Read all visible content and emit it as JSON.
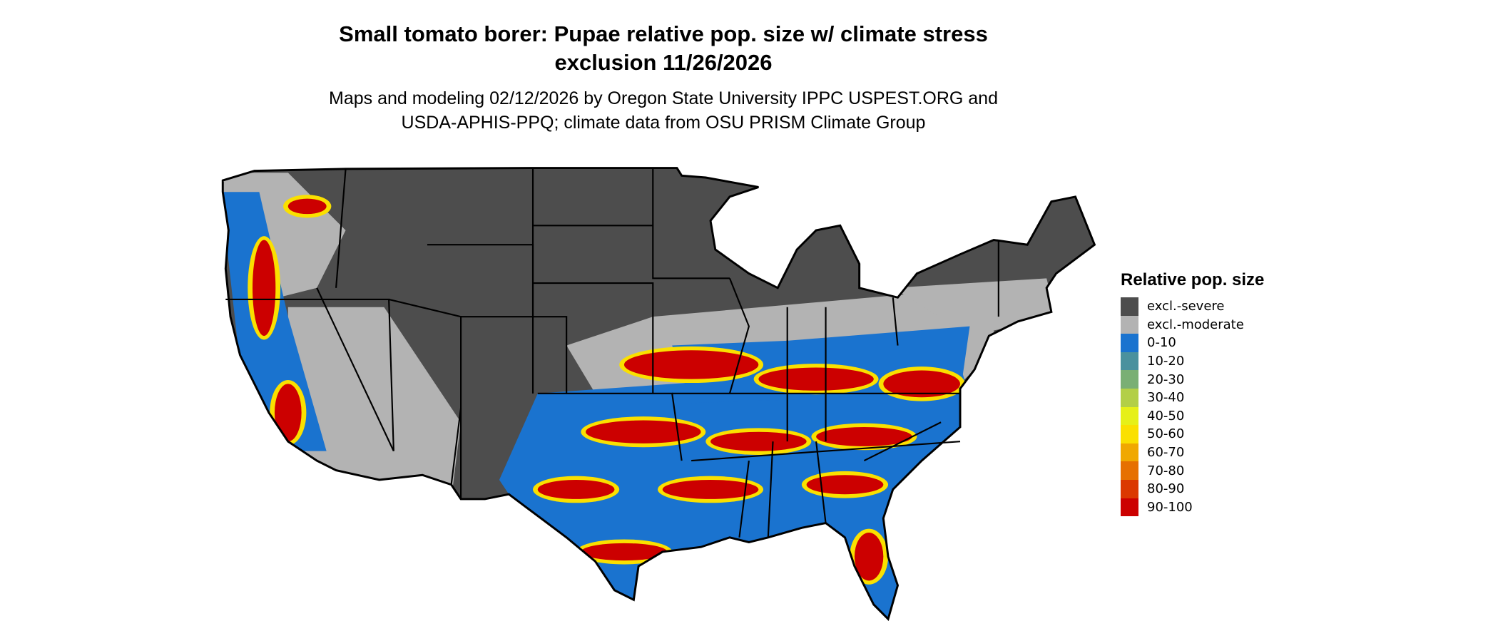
{
  "title_line1": "Small tomato borer: Pupae relative pop. size w/ climate stress",
  "title_line2": "exclusion 11/26/2026",
  "subtitle_line1": "Maps and modeling 02/12/2026 by Oregon State University IPPC USPEST.ORG and",
  "subtitle_line2": "USDA-APHIS-PPQ; climate data from OSU PRISM Climate Group",
  "map": {
    "region": "Contiguous United States",
    "state_borders": true,
    "outline_color": "#000000"
  },
  "legend": {
    "title": "Relative pop. size",
    "placement": "right",
    "items": [
      {
        "label": "excl.-severe",
        "color": "#4d4d4d"
      },
      {
        "label": "excl.-moderate",
        "color": "#b3b3b3"
      },
      {
        "label": "0-10",
        "color": "#1a73cf"
      },
      {
        "label": "10-20",
        "color": "#4a919e"
      },
      {
        "label": "20-30",
        "color": "#7aaf74"
      },
      {
        "label": "30-40",
        "color": "#b3cf47"
      },
      {
        "label": "40-50",
        "color": "#e6f018"
      },
      {
        "label": "50-60",
        "color": "#fae000"
      },
      {
        "label": "60-70",
        "color": "#f0a800"
      },
      {
        "label": "70-80",
        "color": "#e67000"
      },
      {
        "label": "80-90",
        "color": "#db3800"
      },
      {
        "label": "90-100",
        "color": "#cc0000"
      }
    ]
  }
}
